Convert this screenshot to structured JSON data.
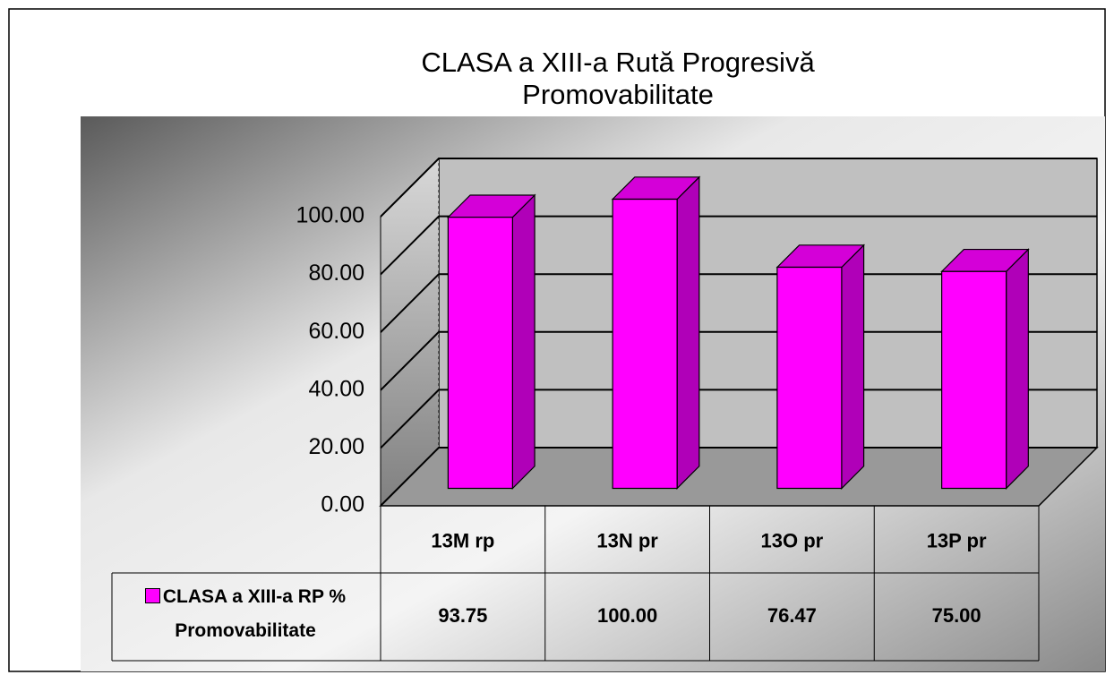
{
  "chart_data": {
    "type": "bar3d",
    "title": "CLASA a XIII-a Rută Progresivă Promovabilitate",
    "categories": [
      "13M rp",
      "13N pr",
      "13O pr",
      "13P pr"
    ],
    "series": [
      {
        "name": "CLASA a XIII-a RP % Promovabilitate",
        "color": "#ff00ff",
        "values": [
          93.75,
          100.0,
          76.47,
          75.0
        ],
        "value_labels": [
          "93.75",
          "100.00",
          "76.47",
          "75.00"
        ]
      }
    ],
    "ylim": [
      0,
      100
    ],
    "yticks": [
      {
        "value": 0,
        "label": "0.00"
      },
      {
        "value": 20,
        "label": "20.00"
      },
      {
        "value": 40,
        "label": "40.00"
      },
      {
        "value": 60,
        "label": "60.00"
      },
      {
        "value": 80,
        "label": "80.00"
      },
      {
        "value": 100,
        "label": "100.00"
      }
    ],
    "grid": true,
    "data_table": true
  }
}
